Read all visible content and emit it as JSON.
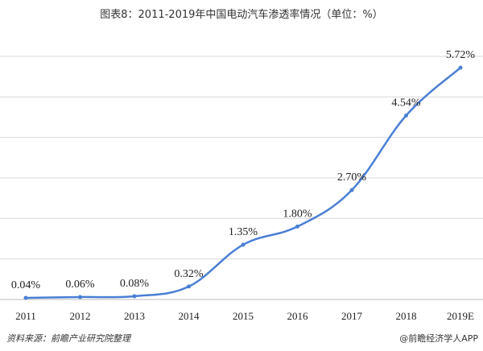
{
  "chart_data": {
    "type": "line",
    "title": "图表8：2011-2019年中国电动汽车渗透率情况（单位：%）",
    "categories": [
      "2011",
      "2012",
      "2013",
      "2014",
      "2015",
      "2016",
      "2017",
      "2018",
      "2019E"
    ],
    "series": [
      {
        "name": "电动汽车渗透率",
        "color": "#4a7fd4",
        "values": [
          0.04,
          0.06,
          0.08,
          0.32,
          1.35,
          1.8,
          2.7,
          4.54,
          5.72
        ],
        "value_labels": [
          "0.04%",
          "0.06%",
          "0.08%",
          "0.32%",
          "1.35%",
          "1.80%",
          "2.70%",
          "4.54%",
          "5.72%"
        ]
      }
    ],
    "ylim": [
      0,
      6
    ],
    "yticks": [
      0,
      1,
      2,
      3,
      4,
      5,
      6
    ],
    "grid": true,
    "source": "资料来源：前瞻产业研究院整理",
    "credit": "@前瞻经济学人APP"
  }
}
